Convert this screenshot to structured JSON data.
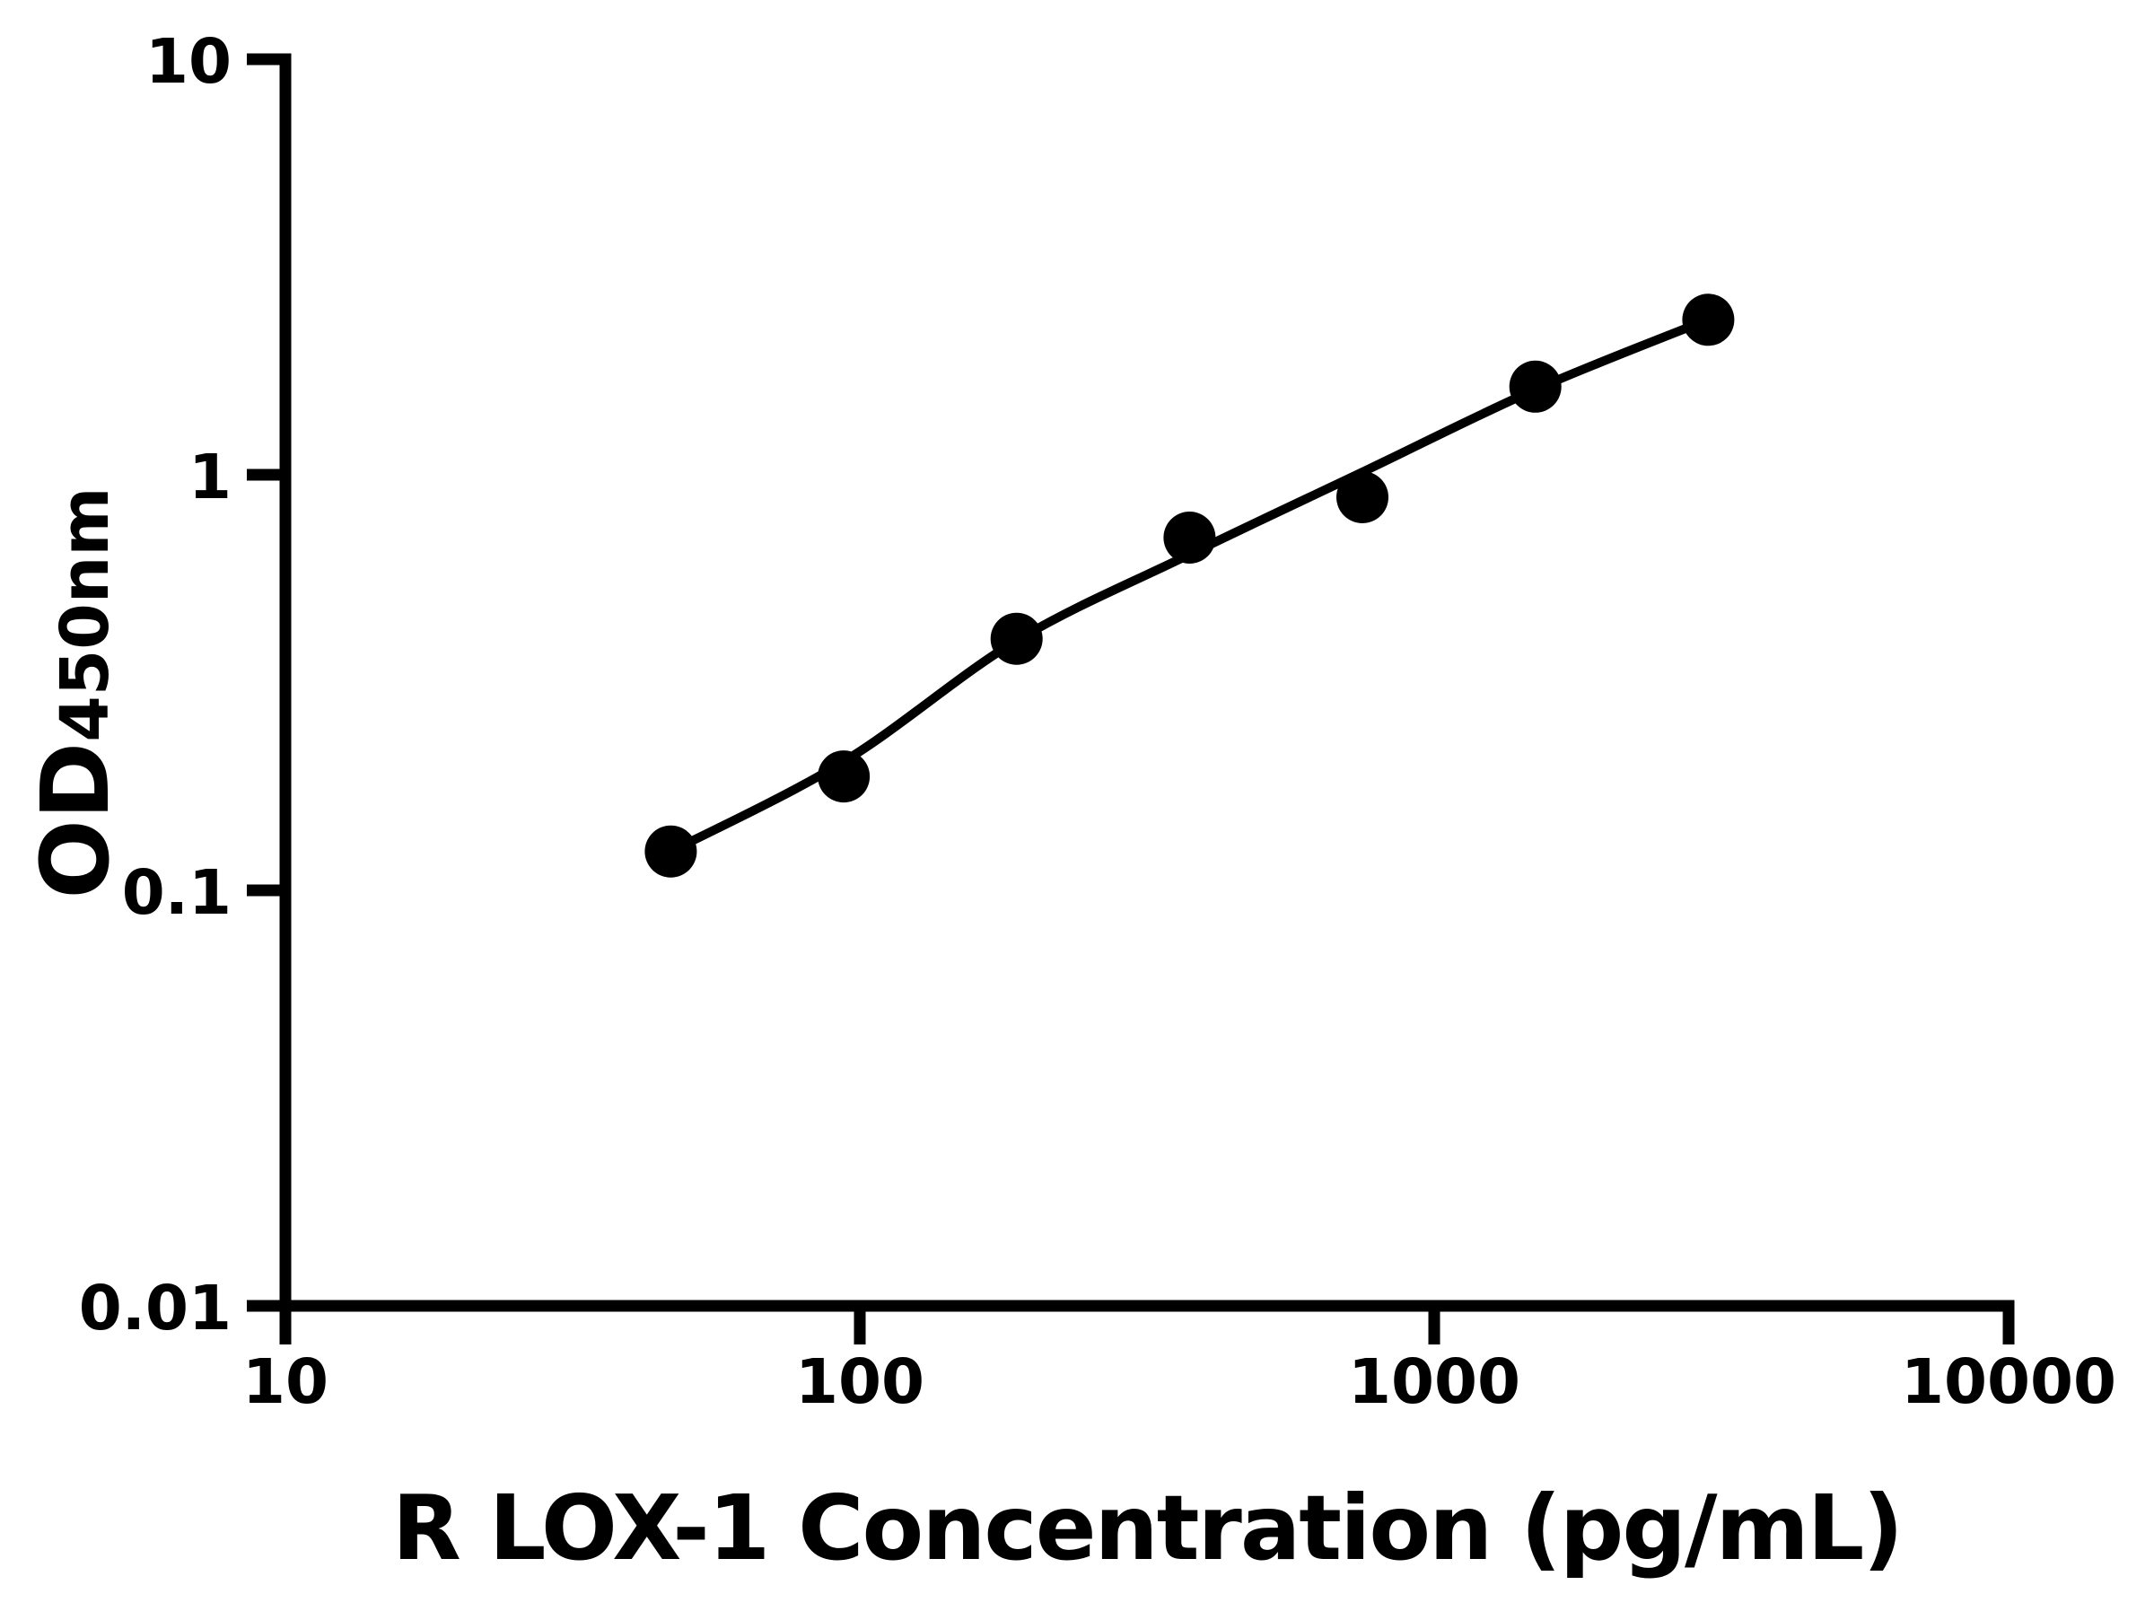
{
  "page": {
    "background": "#ffffff"
  },
  "chart_data": {
    "type": "scatter",
    "title": "",
    "xlabel": "R LOX-1 Concentration (pg/mL)",
    "ylabel": "OD450nm",
    "ylabel_main": "OD",
    "ylabel_subscript": "450nm",
    "x_scale": "log",
    "y_scale": "log",
    "xlim": [
      10,
      10000
    ],
    "ylim": [
      0.01,
      10
    ],
    "grid": false,
    "legend": "none",
    "axis_color": "#000000",
    "marker_color": "#000000",
    "curve_color": "#000000",
    "x_ticks": [
      {
        "value": 10,
        "label": "10"
      },
      {
        "value": 100,
        "label": "100"
      },
      {
        "value": 1000,
        "label": "1000"
      },
      {
        "value": 10000,
        "label": "10000"
      }
    ],
    "y_ticks": [
      {
        "value": 10,
        "label": "10"
      },
      {
        "value": 1,
        "label": "1"
      },
      {
        "value": 0.1,
        "label": "0.1"
      },
      {
        "value": 0.01,
        "label": "0.01"
      }
    ],
    "series": [
      {
        "name": "standard-points",
        "type": "scatter",
        "points": [
          {
            "x": 46.88,
            "y": 0.124
          },
          {
            "x": 93.75,
            "y": 0.188
          },
          {
            "x": 187.5,
            "y": 0.403
          },
          {
            "x": 375,
            "y": 0.706
          },
          {
            "x": 750,
            "y": 0.883
          },
          {
            "x": 1500,
            "y": 1.63
          },
          {
            "x": 3000,
            "y": 2.36
          }
        ]
      },
      {
        "name": "fit-curve",
        "type": "line",
        "points": [
          {
            "x": 46.88,
            "y": 0.124
          },
          {
            "x": 93.75,
            "y": 0.204
          },
          {
            "x": 187.5,
            "y": 0.399
          },
          {
            "x": 375,
            "y": 0.643
          },
          {
            "x": 750,
            "y": 1.015
          },
          {
            "x": 1500,
            "y": 1.604
          },
          {
            "x": 3000,
            "y": 2.364
          }
        ]
      }
    ]
  }
}
